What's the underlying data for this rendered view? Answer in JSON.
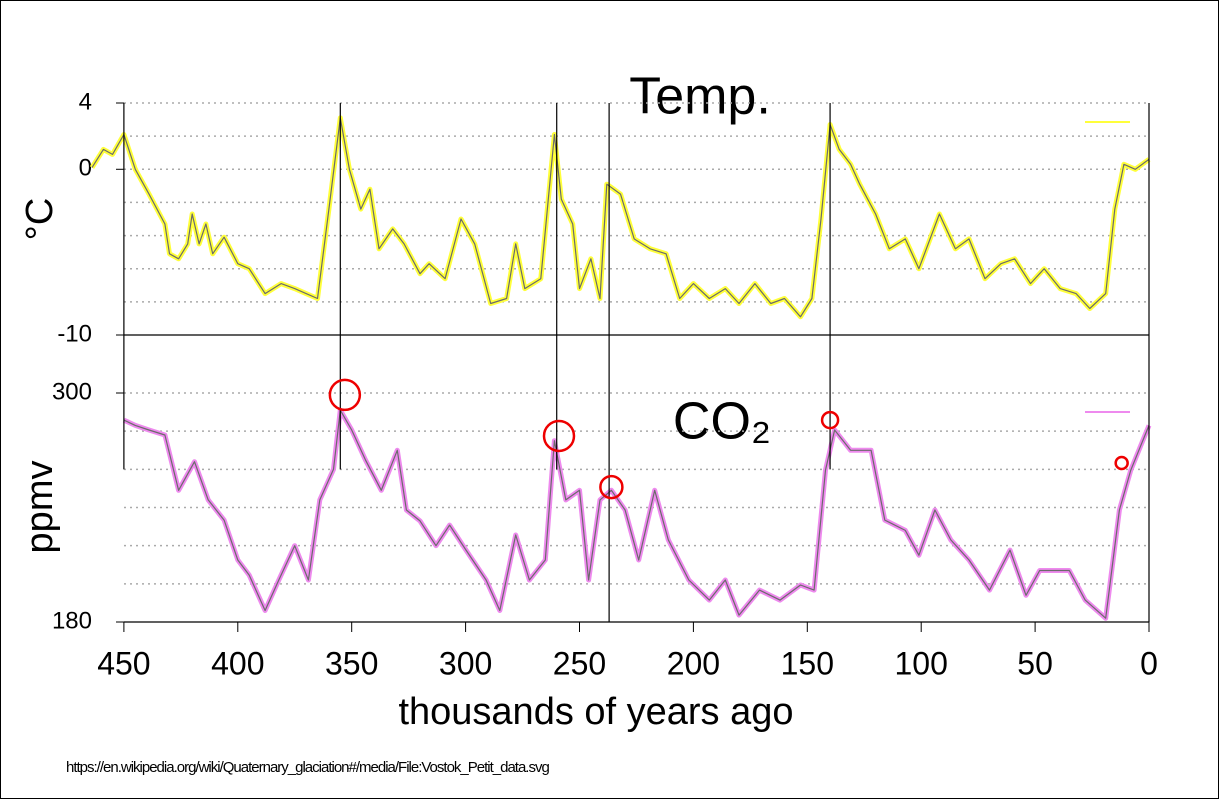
{
  "chart_data": [
    {
      "type": "line",
      "title": "Temp.",
      "ylabel": "°C",
      "xlim": [
        464,
        0
      ],
      "ylim": [
        -10,
        4
      ],
      "yticks": [
        4,
        0,
        -10
      ],
      "ygrid": [
        4,
        2,
        0,
        -2,
        -4,
        -6,
        -8
      ],
      "grid": true,
      "series": [
        {
          "color": "#ffff3a",
          "x": [
            464,
            459,
            455,
            450,
            445,
            439,
            432,
            430,
            426,
            422,
            420,
            417,
            414,
            411,
            406,
            400,
            395,
            388,
            381,
            375,
            370,
            365,
            360,
            355,
            351,
            346,
            342,
            338,
            332,
            327,
            320,
            316,
            309,
            302,
            296,
            289,
            282,
            278,
            274,
            267,
            261,
            258,
            253,
            250,
            245,
            241,
            238,
            232,
            226,
            219,
            212,
            206,
            200,
            193,
            186,
            180,
            173,
            166,
            160,
            153,
            148,
            144,
            140,
            136,
            131,
            127,
            120,
            114,
            107,
            101,
            92,
            85,
            79,
            72,
            65,
            59,
            52,
            46,
            39,
            32,
            26,
            19,
            15,
            11,
            6,
            0
          ],
          "values": [
            0.1,
            1.2,
            0.9,
            2.1,
            0,
            -1.5,
            -3.3,
            -5.1,
            -5.4,
            -4.5,
            -2.7,
            -4.5,
            -3.3,
            -5.1,
            -4.1,
            -5.7,
            -6,
            -7.5,
            -6.9,
            -7.2,
            -7.5,
            -7.8,
            -2.4,
            3.1,
            0,
            -2.4,
            -1.2,
            -4.8,
            -3.6,
            -4.5,
            -6.3,
            -5.7,
            -6.6,
            -3,
            -4.5,
            -8.1,
            -7.8,
            -4.5,
            -7.2,
            -6.6,
            2.1,
            -1.8,
            -3.3,
            -7.2,
            -5.4,
            -7.8,
            -0.9,
            -1.5,
            -4.2,
            -4.8,
            -5.1,
            -7.8,
            -6.9,
            -7.8,
            -7.2,
            -8.1,
            -6.9,
            -8.1,
            -7.8,
            -8.9,
            -7.8,
            -3,
            2.7,
            1.2,
            0.3,
            -0.9,
            -2.7,
            -4.8,
            -4.2,
            -6,
            -2.7,
            -4.8,
            -4.2,
            -6.6,
            -5.7,
            -5.4,
            -6.9,
            -6,
            -7.2,
            -7.5,
            -8.4,
            -7.5,
            -2.4,
            0.3,
            0,
            0.6
          ]
        }
      ]
    },
    {
      "type": "line",
      "title": "CO₂",
      "ylabel": "ppmv",
      "xlabel": "thousands of years ago",
      "xlim": [
        464,
        0
      ],
      "ylim": [
        180,
        300
      ],
      "yticks": [
        300,
        180
      ],
      "ygrid": [
        300,
        280,
        260,
        240,
        220,
        200
      ],
      "grid": true,
      "xticks": [
        450,
        400,
        350,
        300,
        250,
        200,
        150,
        100,
        50,
        0
      ],
      "series": [
        {
          "color": "#ee8aee",
          "x": [
            450,
            445,
            439,
            432,
            426,
            419,
            413,
            406,
            400,
            395,
            388,
            382,
            375,
            369,
            364,
            358,
            355,
            350,
            344,
            337,
            330,
            326,
            320,
            313,
            307,
            300,
            291,
            285,
            278,
            272,
            265,
            261,
            256,
            250,
            246,
            241,
            236,
            230,
            224,
            217,
            211,
            202,
            193,
            186,
            180,
            171,
            162,
            153,
            147,
            142,
            138,
            131,
            122,
            116,
            107,
            101,
            94,
            87,
            79,
            70,
            61,
            54,
            48,
            41,
            35,
            28,
            19,
            13,
            8,
            0
          ],
          "values": [
            285.8,
            283,
            280.6,
            278,
            249,
            264,
            244,
            233.4,
            212.5,
            204.6,
            186,
            202,
            220,
            202,
            244,
            260,
            291,
            280.6,
            265,
            249,
            270,
            238.7,
            233,
            220,
            230.8,
            218,
            202,
            186,
            225.6,
            202,
            212.5,
            275,
            244,
            249,
            202,
            244,
            249,
            238.7,
            212.5,
            249,
            223,
            202,
            191.5,
            202,
            183.6,
            196.7,
            191.5,
            199.4,
            196.7,
            259.6,
            280.6,
            270,
            270,
            233.4,
            228,
            215,
            238.7,
            223,
            212.5,
            196.7,
            217.7,
            194,
            207,
            207,
            207,
            191.5,
            182,
            238.7,
            259.6,
            283
          ]
        }
      ],
      "highlights": [
        {
          "x": 353,
          "y": 299
        },
        {
          "x": 259,
          "y": 277.5
        },
        {
          "x": 236,
          "y": 250.7
        },
        {
          "x": 140,
          "y": 285.8
        },
        {
          "x": 12,
          "y": 263.3
        }
      ],
      "event_lines": [
        {
          "x": 450,
          "to": 260
        },
        {
          "x": 355,
          "to": 260
        },
        {
          "x": 260,
          "to": 260
        },
        {
          "x": 237,
          "to": 180
        },
        {
          "x": 140,
          "to": 260
        }
      ]
    }
  ],
  "source": "https://en.wikipedia.org/wiki/Quaternary_glaciation#/media/File:Vostok_Petit_data.svg"
}
